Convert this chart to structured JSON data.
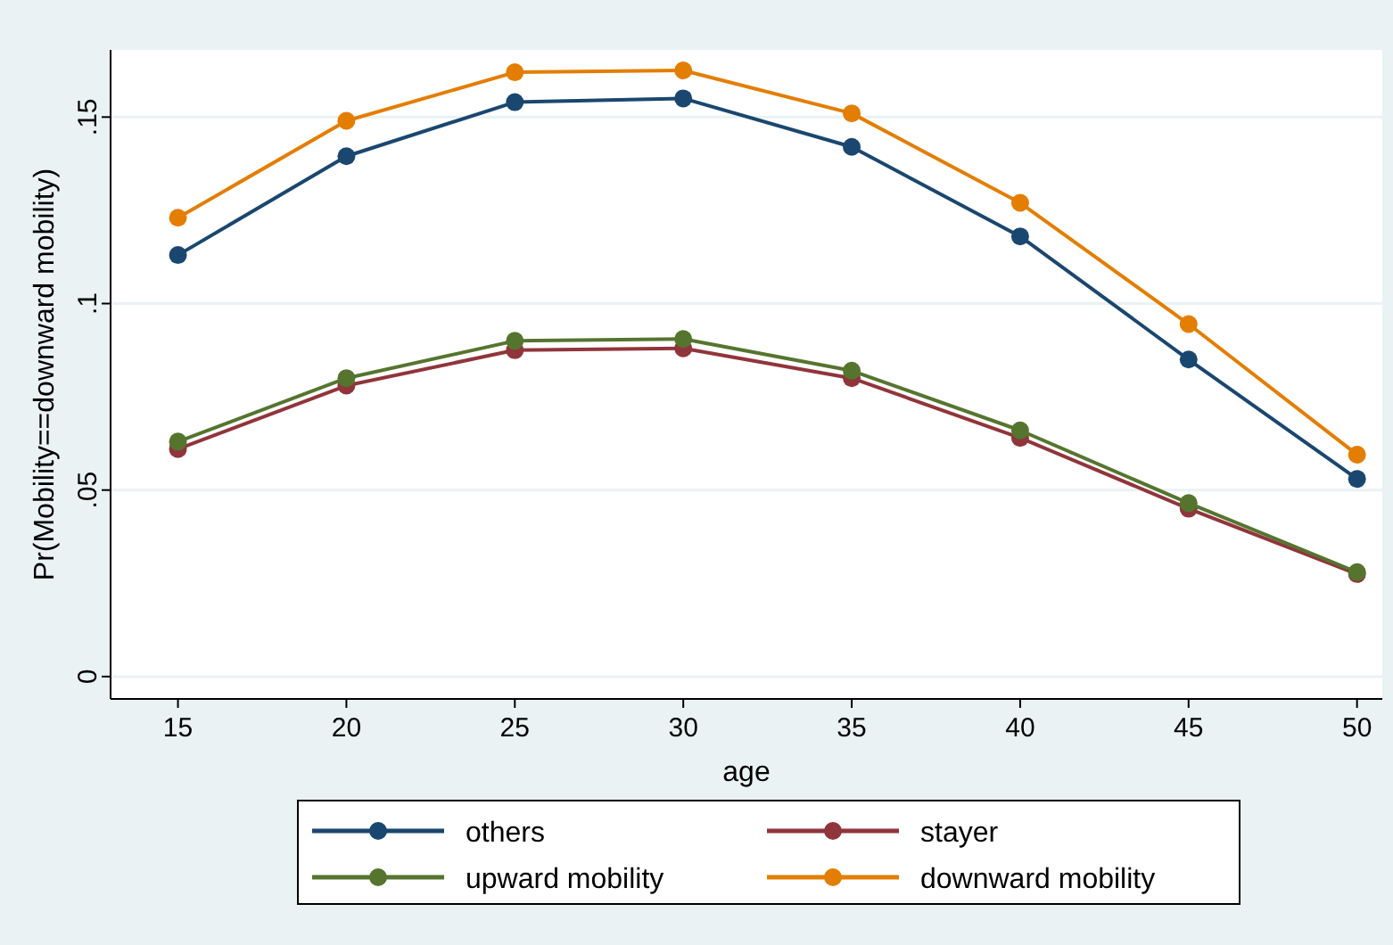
{
  "chart_data": {
    "type": "line",
    "xlabel": "age",
    "ylabel": "Pr(Mobility==downward mobility)",
    "x": [
      15,
      20,
      25,
      30,
      35,
      40,
      45,
      50
    ],
    "xlim": [
      13,
      50.75
    ],
    "xticks": [
      15,
      20,
      25,
      30,
      35,
      40,
      45,
      50
    ],
    "ylim": [
      -0.006,
      0.168
    ],
    "yticks": [
      {
        "value": 0,
        "label": "0"
      },
      {
        "value": 0.05,
        "label": ".05"
      },
      {
        "value": 0.1,
        "label": ".1"
      },
      {
        "value": 0.15,
        "label": ".15"
      }
    ],
    "grid": "y",
    "legend": "bottom",
    "marker": "circle",
    "line_style": "solid",
    "series": [
      {
        "name": "others",
        "color": "#1a476f",
        "values": [
          0.113,
          0.1395,
          0.154,
          0.155,
          0.142,
          0.118,
          0.085,
          0.053
        ]
      },
      {
        "name": "stayer",
        "color": "#90353b",
        "values": [
          0.061,
          0.078,
          0.0875,
          0.088,
          0.08,
          0.064,
          0.045,
          0.0275
        ]
      },
      {
        "name": "upward mobility",
        "color": "#55752f",
        "values": [
          0.063,
          0.08,
          0.09,
          0.0905,
          0.082,
          0.066,
          0.0465,
          0.028
        ]
      },
      {
        "name": "downward mobility",
        "color": "#e37e00",
        "values": [
          0.123,
          0.149,
          0.162,
          0.1625,
          0.151,
          0.127,
          0.0945,
          0.0595
        ]
      }
    ]
  }
}
